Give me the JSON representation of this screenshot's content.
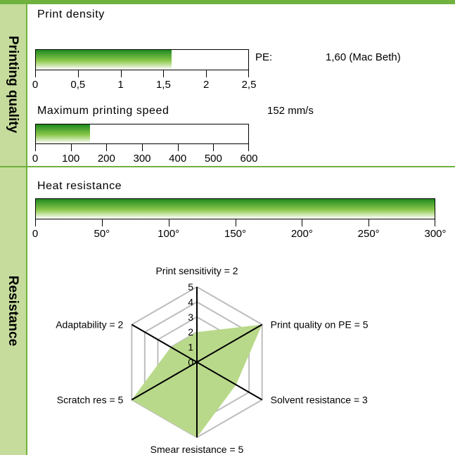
{
  "sections": {
    "printing_quality": "Printing quality",
    "resistance": "Resistance"
  },
  "chart_data": [
    {
      "type": "bar",
      "title": "Print density",
      "value": 1.6,
      "xlim": [
        0,
        2.5
      ],
      "ticks": [
        0,
        0.5,
        1,
        1.5,
        2,
        2.5
      ],
      "tick_labels": [
        "0",
        "0,5",
        "1",
        "1,5",
        "2",
        "2,5"
      ],
      "annotation_label": "PE:",
      "annotation_value": "1,60 (Mac Beth)"
    },
    {
      "type": "bar",
      "title": "Maximum printing speed",
      "value": 152,
      "xlim": [
        0,
        600
      ],
      "ticks": [
        0,
        100,
        200,
        300,
        400,
        500,
        600
      ],
      "tick_labels": [
        "0",
        "100",
        "200",
        "300",
        "400",
        "500",
        "600"
      ],
      "annotation_value": "152 mm/s"
    },
    {
      "type": "bar",
      "title": "Heat resistance",
      "value": 300,
      "xlim": [
        0,
        300
      ],
      "ticks": [
        0,
        50,
        100,
        150,
        200,
        250,
        300
      ],
      "tick_labels": [
        "0",
        "50°",
        "100°",
        "150°",
        "200°",
        "250°",
        "300°"
      ]
    },
    {
      "type": "radar",
      "rmax": 5,
      "scale_labels": [
        "0",
        "1",
        "2",
        "3",
        "4",
        "5"
      ],
      "axes": [
        {
          "label": "Print sensitivity = 2",
          "value": 2
        },
        {
          "label": "Print quality on PE = 5",
          "value": 5
        },
        {
          "label": "Solvent resistance = 3",
          "value": 3
        },
        {
          "label": "Smear resistance = 5",
          "value": 5
        },
        {
          "label": "Scratch res = 5",
          "value": 5
        },
        {
          "label": "Adaptability = 2",
          "value": 2
        }
      ],
      "fill_color": "#b9d98a",
      "grid_color": "#bdbdbd"
    }
  ]
}
